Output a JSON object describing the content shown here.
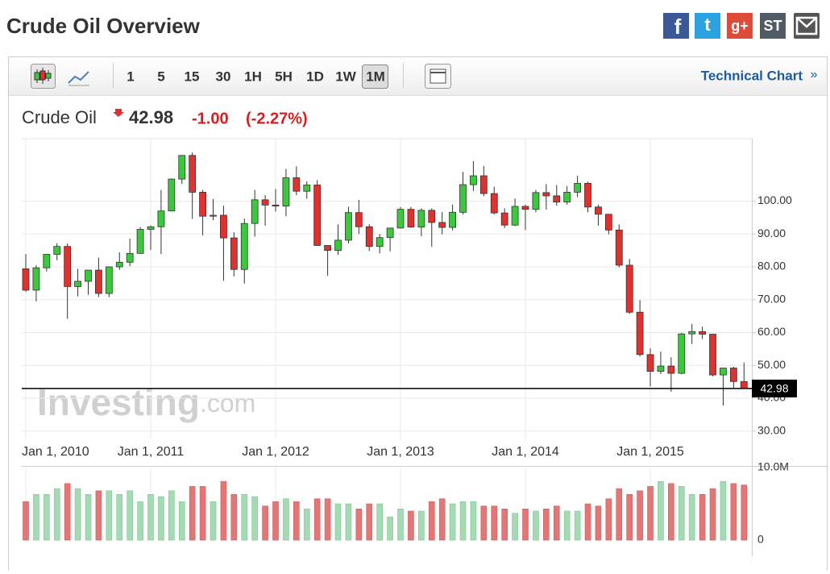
{
  "page": {
    "title": "Crude Oil Overview",
    "social": [
      "f",
      "t",
      "g+",
      "ST"
    ],
    "intervals": [
      "1",
      "5",
      "15",
      "30",
      "1H",
      "5H",
      "1D",
      "1W",
      "1M"
    ],
    "selected_interval": "1M",
    "technical_chart": "Technical Chart",
    "technical_chart_arrow": "»",
    "instrument": "Crude Oil",
    "price": "42.98",
    "change": "-1.00",
    "change_pct": "(-2.27%)"
  },
  "chart_data": {
    "type": "candlestick",
    "watermark": [
      "Investing",
      ".com"
    ],
    "categories": [
      "Jan 1, 2010",
      null,
      null,
      null,
      null,
      null,
      null,
      null,
      null,
      null,
      null,
      null,
      "Jan 1, 2011",
      null,
      null,
      null,
      null,
      null,
      null,
      null,
      null,
      null,
      null,
      null,
      "Jan 1, 2012",
      null,
      null,
      null,
      null,
      null,
      null,
      null,
      null,
      null,
      null,
      null,
      "Jan 1, 2013",
      null,
      null,
      null,
      null,
      null,
      null,
      null,
      null,
      null,
      null,
      null,
      "Jan 1, 2014",
      null,
      null,
      null,
      null,
      null,
      null,
      null,
      null,
      null,
      null,
      null,
      "Jan 1, 2015",
      null,
      null,
      null,
      null,
      null,
      null,
      null,
      null,
      null
    ],
    "open": [
      79.4,
      72.9,
      79.7,
      83.8,
      86.2,
      74.0,
      75.6,
      79.0,
      71.9,
      80.0,
      81.4,
      84.1,
      91.4,
      92.2,
      97.0,
      106.7,
      113.9,
      102.7,
      95.4,
      95.7,
      88.8,
      79.2,
      93.2,
      100.4,
      98.8,
      98.5,
      107.1,
      103.0,
      104.9,
      86.5,
      85.0,
      88.1,
      96.5,
      92.2,
      86.2,
      88.9,
      91.8,
      97.5,
      92.1,
      97.2,
      93.5,
      92.0,
      96.6,
      105.0,
      107.7,
      102.3,
      96.4,
      92.7,
      98.4,
      97.5,
      102.6,
      101.6,
      99.7,
      102.7,
      105.4,
      98.2,
      96.0,
      91.2,
      80.5,
      66.2,
      53.3,
      48.2,
      49.8,
      47.6,
      59.6,
      60.3,
      59.5,
      47.1,
      49.2,
      45.1
    ],
    "high": [
      83.9,
      80.5,
      83.8,
      87.2,
      87.1,
      79.4,
      79.0,
      82.8,
      80.0,
      84.4,
      88.6,
      92.1,
      92.6,
      103.4,
      106.9,
      113.9,
      114.8,
      103.4,
      100.6,
      98.6,
      90.5,
      94.7,
      103.4,
      101.8,
      103.7,
      109.8,
      110.6,
      106.0,
      106.4,
      86.5,
      92.9,
      98.3,
      100.4,
      93.0,
      90.0,
      91.9,
      98.2,
      98.2,
      97.8,
      97.8,
      96.7,
      99.0,
      108.9,
      112.2,
      110.7,
      104.4,
      97.8,
      100.8,
      98.9,
      103.4,
      105.2,
      104.9,
      104.6,
      107.7,
      105.9,
      98.9,
      96.1,
      92.9,
      82.4,
      69.9,
      55.2,
      54.2,
      52.5,
      59.9,
      62.6,
      61.8,
      59.6,
      49.3,
      49.6,
      50.9
    ],
    "low": [
      72.4,
      69.5,
      78.6,
      82.0,
      64.2,
      71.0,
      71.5,
      70.8,
      70.8,
      79.1,
      80.2,
      84.0,
      85.1,
      83.9,
      96.9,
      105.2,
      94.6,
      89.6,
      94.2,
      75.7,
      77.1,
      74.9,
      89.2,
      92.5,
      96.8,
      95.4,
      101.8,
      100.7,
      86.4,
      77.3,
      83.6,
      87.1,
      90.0,
      84.8,
      84.1,
      84.7,
      91.7,
      91.9,
      89.3,
      86.1,
      89.9,
      91.1,
      95.9,
      103.1,
      101.5,
      95.9,
      91.8,
      92.4,
      91.2,
      96.6,
      97.4,
      98.6,
      98.9,
      101.2,
      96.6,
      92.5,
      89.9,
      79.8,
      65.7,
      52.7,
      43.6,
      47.4,
      42.0,
      47.3,
      56.5,
      58.0,
      46.7,
      37.8,
      43.2,
      42.9
    ],
    "close": [
      72.9,
      79.7,
      83.8,
      86.2,
      74.0,
      75.6,
      79.0,
      71.9,
      80.0,
      81.4,
      84.1,
      91.4,
      92.2,
      97.0,
      106.7,
      113.9,
      102.7,
      95.4,
      95.7,
      88.8,
      79.2,
      93.2,
      100.4,
      98.8,
      98.5,
      107.1,
      103.0,
      104.9,
      86.5,
      85.0,
      88.1,
      96.5,
      92.2,
      86.2,
      88.9,
      91.8,
      97.5,
      92.1,
      97.2,
      93.5,
      92.0,
      96.6,
      105.0,
      107.7,
      102.3,
      96.4,
      92.7,
      98.4,
      97.5,
      102.6,
      101.6,
      99.7,
      102.7,
      105.4,
      98.2,
      96.0,
      91.2,
      80.5,
      66.2,
      53.3,
      48.2,
      49.8,
      47.6,
      59.6,
      60.3,
      59.5,
      47.1,
      49.2,
      45.1,
      42.98
    ],
    "volume": [
      5.3,
      6.3,
      6.3,
      7.1,
      7.8,
      7.1,
      6.3,
      6.8,
      6.8,
      6.3,
      6.8,
      5.3,
      6.3,
      6.0,
      6.8,
      5.3,
      7.4,
      7.4,
      5.3,
      8.1,
      6.3,
      6.3,
      6.0,
      4.7,
      5.3,
      5.7,
      5.3,
      4.3,
      5.7,
      5.7,
      5.0,
      5.0,
      4.3,
      5.0,
      5.0,
      3.2,
      4.3,
      4.0,
      4.0,
      5.3,
      5.7,
      5.0,
      5.3,
      5.3,
      4.7,
      4.7,
      4.3,
      3.7,
      4.3,
      4.0,
      4.3,
      4.7,
      4.0,
      4.0,
      5.0,
      4.7,
      5.7,
      7.1,
      6.3,
      6.8,
      7.4,
      8.1,
      7.8,
      7.4,
      6.3,
      6.3,
      7.1,
      8.1,
      7.8,
      7.6
    ],
    "up_color": "#3cc83c",
    "down_color": "#e0312f",
    "volume_up_color": "#a4dbb4",
    "volume_down_color": "#e57676",
    "ylim": [
      27.5,
      119
    ],
    "yticks": [
      {
        "value": 30,
        "label": "30.00"
      },
      {
        "value": 40,
        "label": "40.00"
      },
      {
        "value": 50,
        "label": "50.00"
      },
      {
        "value": 60,
        "label": "60.00"
      },
      {
        "value": 70,
        "label": "70.00"
      },
      {
        "value": 80,
        "label": "80.00"
      },
      {
        "value": 90,
        "label": "90.00"
      },
      {
        "value": 100,
        "label": "100.00"
      }
    ],
    "volume_ylim": [
      0,
      10
    ],
    "volume_ticks": [
      0,
      {
        "value": 10,
        "label": "10.0M"
      }
    ],
    "last_price": 42.98,
    "grid": true
  }
}
